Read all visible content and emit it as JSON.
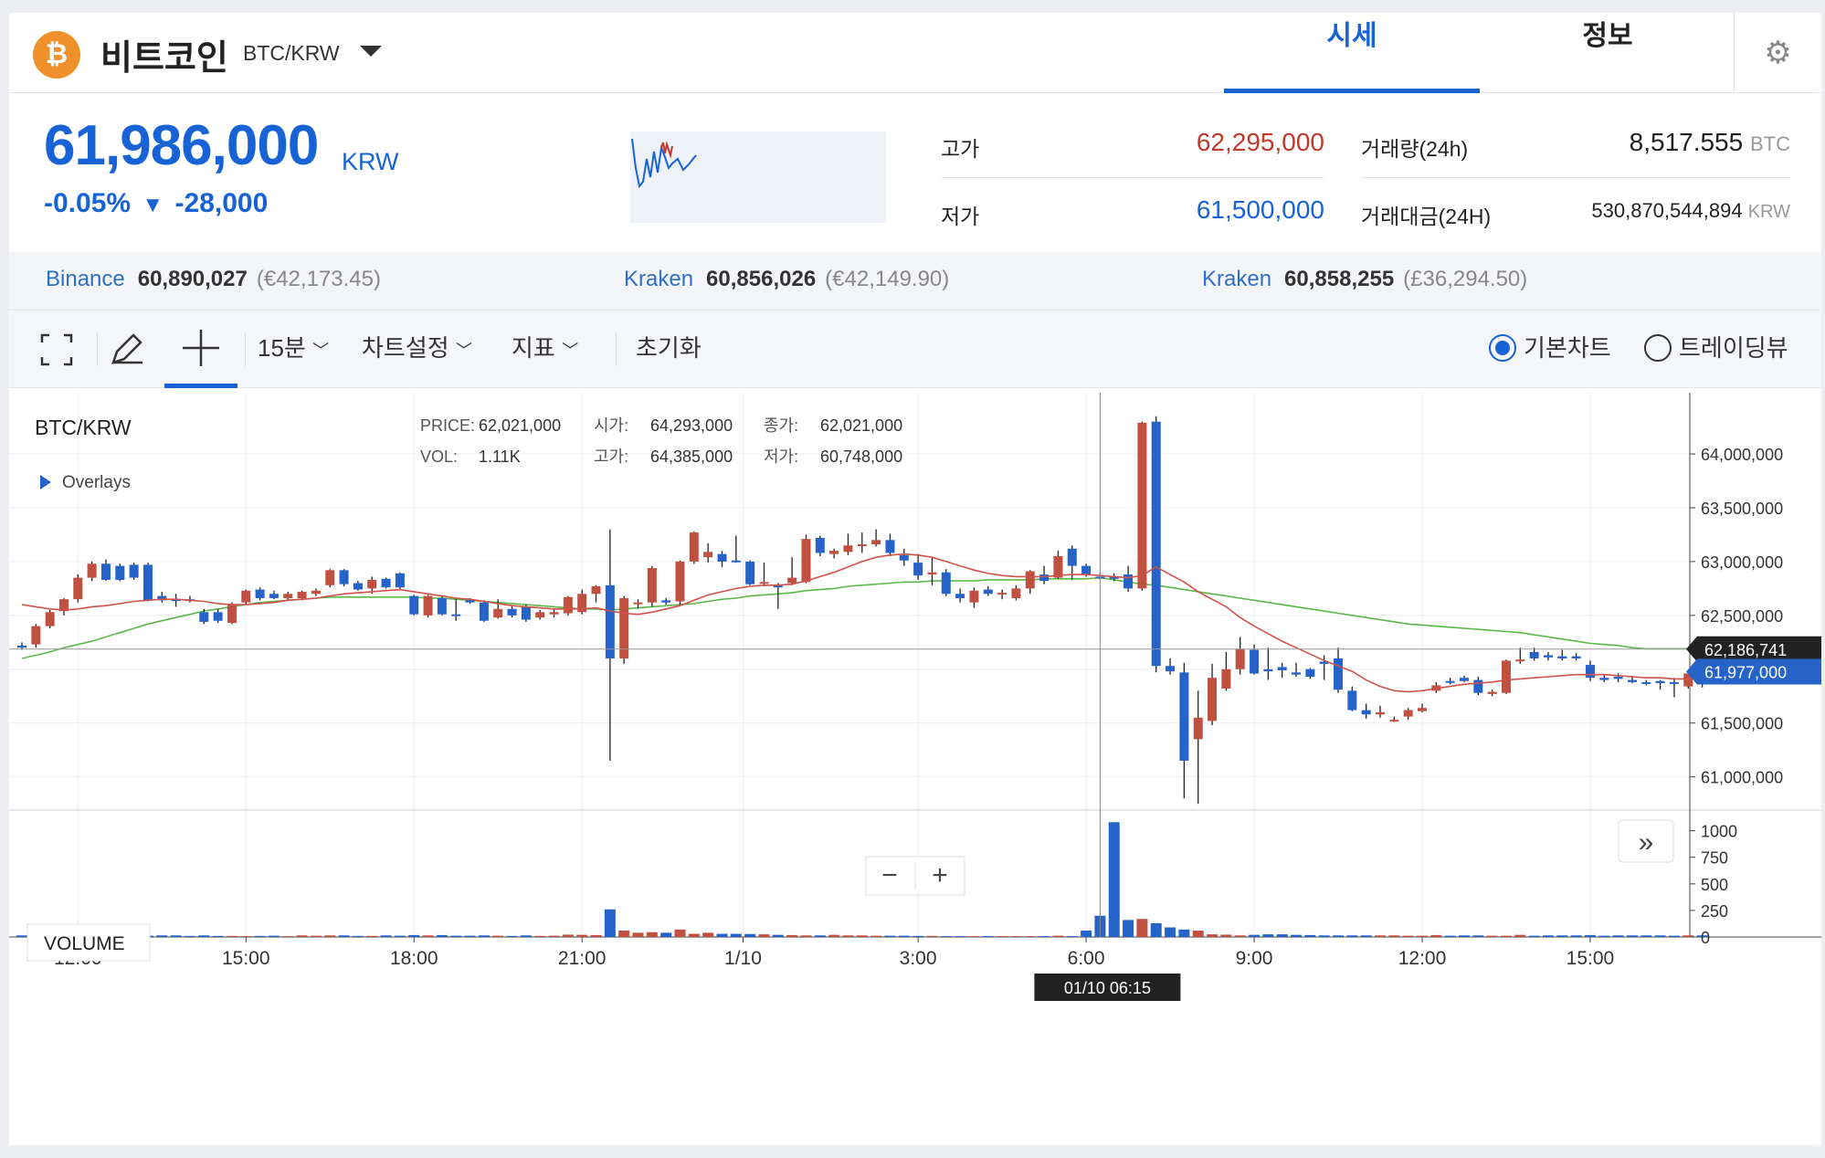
{
  "header": {
    "coin_icon": "bitcoin-icon",
    "coin_name": "비트코인",
    "pair": "BTC/KRW",
    "tabs": [
      {
        "label": "시세",
        "active": true
      },
      {
        "label": "정보",
        "active": false
      }
    ],
    "settings_icon": "gear-icon"
  },
  "ticker": {
    "price": "61,986,000",
    "unit": "KRW",
    "change_pct": "-0.05%",
    "change_arrow": "▼",
    "change_abs": "-28,000",
    "high_label": "고가",
    "high_value": "62,295,000",
    "low_label": "저가",
    "low_value": "61,500,000",
    "volume_label": "거래량(24h)",
    "volume_value": "8,517.555",
    "volume_unit": "BTC",
    "amount_label": "거래대금(24H)",
    "amount_value": "530,870,544,894",
    "amount_unit": "KRW"
  },
  "exchanges": [
    {
      "name": "Binance",
      "price": "60,890,027",
      "foreign": "(€42,173.45)"
    },
    {
      "name": "Kraken",
      "price": "60,856,026",
      "foreign": "(€42,149.90)"
    },
    {
      "name": "Kraken",
      "price": "60,858,255",
      "foreign": "(£36,294.50)"
    }
  ],
  "toolbar": {
    "fullscreen_icon": "fullscreen-icon",
    "pencil_icon": "pencil-icon",
    "crosshair_icon": "crosshair-icon",
    "interval": "15분",
    "chart_settings": "차트설정",
    "indicators": "지표",
    "reset": "초기화",
    "basic_chart": "기본차트",
    "tradingview": "트레이딩뷰",
    "selected_view": "기본차트"
  },
  "chart_data": {
    "type": "candlestick",
    "title": "BTC/KRW",
    "overlays_label": "Overlays",
    "info": {
      "price_label": "PRICE:",
      "price": "62,021,000",
      "open_label": "시가:",
      "open": "64,293,000",
      "close_label": "종가:",
      "close": "62,021,000",
      "vol_label": "VOL:",
      "vol": "1.11K",
      "high_label": "고가:",
      "high": "64,385,000",
      "low_label": "저가:",
      "low": "60,748,000"
    },
    "y_ticks": [
      "64,000,000",
      "63,500,000",
      "63,000,000",
      "62,500,000",
      "61,500,000",
      "61,000,000"
    ],
    "y_tick_values": [
      64000000,
      63500000,
      63000000,
      62500000,
      61500000,
      61000000
    ],
    "price_range": [
      60700000,
      64450000
    ],
    "ma_label": "62,186,741",
    "ma_value": 62186741,
    "last_label": "61,977,000",
    "last_value": 61977000,
    "x_ticks": [
      "12:00",
      "15:00",
      "18:00",
      "21:00",
      "1/10",
      "3:00",
      "6:00",
      "9:00",
      "12:00",
      "15:00"
    ],
    "x_tick_index": [
      4,
      16,
      28,
      40,
      51.5,
      64,
      76,
      88,
      100,
      112
    ],
    "crosshair_label": "01/10 06:15",
    "crosshair_index": 77,
    "volume_label": "VOLUME",
    "volume_ticks": [
      "1000",
      "750",
      "500",
      "250",
      "0"
    ],
    "volume_tick_values": [
      1000,
      750,
      500,
      250,
      0
    ],
    "volume_max": 1100,
    "candles": [
      [
        62220000,
        62250000,
        62180000,
        62200000
      ],
      [
        62230000,
        62420000,
        62200000,
        62400000
      ],
      [
        62400000,
        62550000,
        62380000,
        62530000
      ],
      [
        62540000,
        62660000,
        62500000,
        62650000
      ],
      [
        62650000,
        62880000,
        62620000,
        62850000
      ],
      [
        62850000,
        63000000,
        62820000,
        62980000
      ],
      [
        62980000,
        63020000,
        62820000,
        62830000
      ],
      [
        62960000,
        62980000,
        62820000,
        62830000
      ],
      [
        62970000,
        62990000,
        62830000,
        62850000
      ],
      [
        62970000,
        62990000,
        62630000,
        62640000
      ],
      [
        62680000,
        62720000,
        62620000,
        62640000
      ],
      [
        62650000,
        62700000,
        62580000,
        62640000
      ],
      [
        62650000,
        62680000,
        62620000,
        62640000
      ],
      [
        62530000,
        62560000,
        62420000,
        62440000
      ],
      [
        62530000,
        62560000,
        62430000,
        62450000
      ],
      [
        62430000,
        62620000,
        62420000,
        62600000
      ],
      [
        62620000,
        62740000,
        62600000,
        62730000
      ],
      [
        62740000,
        62760000,
        62640000,
        62660000
      ],
      [
        62700000,
        62730000,
        62650000,
        62660000
      ],
      [
        62660000,
        62720000,
        62640000,
        62700000
      ],
      [
        62660000,
        62730000,
        62640000,
        62720000
      ],
      [
        62700000,
        62750000,
        62680000,
        62730000
      ],
      [
        62780000,
        62930000,
        62760000,
        62920000
      ],
      [
        62920000,
        62930000,
        62770000,
        62790000
      ],
      [
        62800000,
        62820000,
        62730000,
        62740000
      ],
      [
        62750000,
        62860000,
        62700000,
        62830000
      ],
      [
        62840000,
        62850000,
        62750000,
        62760000
      ],
      [
        62890000,
        62900000,
        62740000,
        62760000
      ],
      [
        62680000,
        62690000,
        62500000,
        62510000
      ],
      [
        62500000,
        62690000,
        62480000,
        62680000
      ],
      [
        62660000,
        62680000,
        62500000,
        62510000
      ],
      [
        62510000,
        62650000,
        62450000,
        62500000
      ],
      [
        62640000,
        62660000,
        62610000,
        62620000
      ],
      [
        62620000,
        62640000,
        62440000,
        62450000
      ],
      [
        62480000,
        62650000,
        62470000,
        62560000
      ],
      [
        62560000,
        62590000,
        62480000,
        62500000
      ],
      [
        62580000,
        62600000,
        62440000,
        62460000
      ],
      [
        62480000,
        62550000,
        62460000,
        62530000
      ],
      [
        62510000,
        62560000,
        62480000,
        62530000
      ],
      [
        62520000,
        62680000,
        62500000,
        62670000
      ],
      [
        62530000,
        62740000,
        62510000,
        62700000
      ],
      [
        62700000,
        62780000,
        62620000,
        62770000
      ],
      [
        62780000,
        63300000,
        61150000,
        62100000
      ],
      [
        62100000,
        62680000,
        62050000,
        62660000
      ],
      [
        62610000,
        62650000,
        62560000,
        62620000
      ],
      [
        62620000,
        62960000,
        62580000,
        62940000
      ],
      [
        62640000,
        62660000,
        62600000,
        62620000
      ],
      [
        62630000,
        63010000,
        62600000,
        63000000
      ],
      [
        63000000,
        63280000,
        62980000,
        63270000
      ],
      [
        63040000,
        63170000,
        62990000,
        63090000
      ],
      [
        63070000,
        63100000,
        62950000,
        63000000
      ],
      [
        63010000,
        63240000,
        62990000,
        63000000
      ],
      [
        63000000,
        63010000,
        62780000,
        62790000
      ],
      [
        62800000,
        62990000,
        62770000,
        62810000
      ],
      [
        62780000,
        62800000,
        62560000,
        62760000
      ],
      [
        62800000,
        63040000,
        62780000,
        62850000
      ],
      [
        62810000,
        63250000,
        62800000,
        63210000
      ],
      [
        63220000,
        63240000,
        63050000,
        63080000
      ],
      [
        63070000,
        63120000,
        63030000,
        63100000
      ],
      [
        63090000,
        63260000,
        63060000,
        63150000
      ],
      [
        63150000,
        63270000,
        63080000,
        63160000
      ],
      [
        63160000,
        63300000,
        63140000,
        63200000
      ],
      [
        63200000,
        63260000,
        63050000,
        63080000
      ],
      [
        63060000,
        63120000,
        62960000,
        63010000
      ],
      [
        62990000,
        63070000,
        62830000,
        62870000
      ],
      [
        62880000,
        63040000,
        62780000,
        62900000
      ],
      [
        62900000,
        62930000,
        62680000,
        62700000
      ],
      [
        62700000,
        62750000,
        62620000,
        62660000
      ],
      [
        62620000,
        62760000,
        62570000,
        62730000
      ],
      [
        62740000,
        62770000,
        62680000,
        62700000
      ],
      [
        62700000,
        62740000,
        62650000,
        62710000
      ],
      [
        62660000,
        62780000,
        62640000,
        62750000
      ],
      [
        62750000,
        62920000,
        62700000,
        62910000
      ],
      [
        62880000,
        62960000,
        62790000,
        62820000
      ],
      [
        62850000,
        63100000,
        62840000,
        63050000
      ],
      [
        63120000,
        63150000,
        62830000,
        62960000
      ],
      [
        62960000,
        62980000,
        62860000,
        62880000
      ],
      [
        62860000,
        62900000,
        62830000,
        62850000
      ],
      [
        62860000,
        62890000,
        62820000,
        62840000
      ],
      [
        62880000,
        62960000,
        62720000,
        62750000
      ],
      [
        62750000,
        64300000,
        62730000,
        64290000
      ],
      [
        64300000,
        64350000,
        61970000,
        62030000
      ],
      [
        62030000,
        62100000,
        61950000,
        61980000
      ],
      [
        61970000,
        62060000,
        60800000,
        61150000
      ],
      [
        61350000,
        61800000,
        60750000,
        61550000
      ],
      [
        61520000,
        62050000,
        61480000,
        61920000
      ],
      [
        61820000,
        62160000,
        61800000,
        62000000
      ],
      [
        62000000,
        62300000,
        61950000,
        62190000
      ],
      [
        62180000,
        62230000,
        61950000,
        61960000
      ],
      [
        62000000,
        62200000,
        61900000,
        61980000
      ],
      [
        62020000,
        62060000,
        61920000,
        61990000
      ],
      [
        61970000,
        62060000,
        61930000,
        61950000
      ],
      [
        62000000,
        62010000,
        61910000,
        61930000
      ],
      [
        62070000,
        62130000,
        61900000,
        62050000
      ],
      [
        62100000,
        62200000,
        61780000,
        61810000
      ],
      [
        61800000,
        61840000,
        61610000,
        61620000
      ],
      [
        61620000,
        61680000,
        61540000,
        61580000
      ],
      [
        61580000,
        61660000,
        61550000,
        61600000
      ],
      [
        61520000,
        61560000,
        61510000,
        61530000
      ],
      [
        61560000,
        61640000,
        61530000,
        61620000
      ],
      [
        61610000,
        61680000,
        61600000,
        61640000
      ],
      [
        61800000,
        61880000,
        61780000,
        61850000
      ],
      [
        61890000,
        61920000,
        61860000,
        61880000
      ],
      [
        61920000,
        61940000,
        61880000,
        61890000
      ],
      [
        61900000,
        61930000,
        61760000,
        61780000
      ],
      [
        61770000,
        61810000,
        61750000,
        61790000
      ],
      [
        61780000,
        62090000,
        61770000,
        62080000
      ],
      [
        62080000,
        62200000,
        62050000,
        62090000
      ],
      [
        62160000,
        62200000,
        62080000,
        62100000
      ],
      [
        62130000,
        62160000,
        62080000,
        62110000
      ],
      [
        62120000,
        62180000,
        62080000,
        62100000
      ],
      [
        62120000,
        62150000,
        62080000,
        62100000
      ],
      [
        62040000,
        62080000,
        61890000,
        61920000
      ],
      [
        61920000,
        61950000,
        61880000,
        61900000
      ],
      [
        61930000,
        61960000,
        61880000,
        61910000
      ],
      [
        61900000,
        61940000,
        61870000,
        61880000
      ],
      [
        61880000,
        61900000,
        61850000,
        61870000
      ],
      [
        61890000,
        61900000,
        61810000,
        61870000
      ],
      [
        61880000,
        61920000,
        61740000,
        61870000
      ],
      [
        61840000,
        61980000,
        61820000,
        61960000
      ],
      [
        61960000,
        61990000,
        61830000,
        61890000
      ]
    ],
    "volumes": [
      15,
      15,
      15,
      15,
      20,
      20,
      15,
      15,
      18,
      12,
      15,
      15,
      10,
      15,
      10,
      10,
      8,
      10,
      12,
      8,
      15,
      12,
      15,
      15,
      10,
      10,
      15,
      12,
      18,
      15,
      18,
      12,
      12,
      15,
      12,
      10,
      15,
      10,
      12,
      22,
      20,
      18,
      260,
      60,
      40,
      45,
      40,
      70,
      30,
      40,
      30,
      30,
      28,
      25,
      20,
      18,
      15,
      15,
      20,
      15,
      15,
      12,
      12,
      12,
      10,
      10,
      8,
      8,
      8,
      8,
      8,
      8,
      8,
      8,
      12,
      8,
      60,
      200,
      1080,
      160,
      170,
      130,
      90,
      70,
      60,
      25,
      22,
      15,
      20,
      25,
      25,
      20,
      18,
      15,
      15,
      15,
      15,
      15,
      15,
      12,
      12,
      18,
      12,
      15,
      15,
      12,
      12,
      20,
      12,
      15,
      15,
      15,
      18,
      12,
      15,
      15,
      15,
      15,
      12,
      15,
      15
    ],
    "ma_short": [
      62600000,
      62580000,
      62560000,
      62550000,
      62560000,
      62580000,
      62590000,
      62610000,
      62630000,
      62640000,
      62650000,
      62650000,
      62640000,
      62630000,
      62610000,
      62600000,
      62600000,
      62610000,
      62620000,
      62640000,
      62650000,
      62660000,
      62680000,
      62700000,
      62710000,
      62720000,
      62730000,
      62740000,
      62720000,
      62700000,
      62680000,
      62660000,
      62650000,
      62630000,
      62610000,
      62590000,
      62580000,
      62570000,
      62560000,
      62560000,
      62560000,
      62570000,
      62540000,
      62520000,
      62510000,
      62530000,
      62560000,
      62590000,
      62640000,
      62690000,
      62720000,
      62750000,
      62770000,
      62780000,
      62780000,
      62790000,
      62820000,
      62860000,
      62900000,
      62950000,
      63000000,
      63040000,
      63060000,
      63070000,
      63060000,
      63040000,
      63000000,
      62960000,
      62920000,
      62890000,
      62870000,
      62860000,
      62860000,
      62860000,
      62870000,
      62880000,
      62880000,
      62870000,
      62860000,
      62850000,
      62870000,
      62950000,
      62880000,
      62810000,
      62720000,
      62650000,
      62580000,
      62480000,
      62400000,
      62330000,
      62260000,
      62200000,
      62140000,
      62080000,
      62030000,
      61980000,
      61900000,
      61840000,
      61800000,
      61790000,
      61800000,
      61820000,
      61840000,
      61860000,
      61870000,
      61880000,
      61900000,
      61910000,
      61920000,
      61930000,
      61940000,
      61950000,
      61950000,
      61950000,
      61940000,
      61930000,
      61920000,
      61920000,
      61910000,
      61910000,
      61940000
    ],
    "ma_long": [
      62100000,
      62130000,
      62160000,
      62200000,
      62230000,
      62260000,
      62300000,
      62340000,
      62380000,
      62420000,
      62450000,
      62480000,
      62510000,
      62540000,
      62560000,
      62580000,
      62600000,
      62620000,
      62630000,
      62640000,
      62650000,
      62660000,
      62670000,
      62670000,
      62670000,
      62670000,
      62670000,
      62670000,
      62670000,
      62660000,
      62660000,
      62650000,
      62640000,
      62630000,
      62620000,
      62610000,
      62600000,
      62590000,
      62580000,
      62570000,
      62560000,
      62560000,
      62550000,
      62560000,
      62570000,
      62580000,
      62590000,
      62600000,
      62610000,
      62630000,
      62650000,
      62660000,
      62680000,
      62690000,
      62700000,
      62710000,
      62730000,
      62740000,
      62750000,
      62770000,
      62780000,
      62790000,
      62800000,
      62810000,
      62810000,
      62820000,
      62820000,
      62820000,
      62820000,
      62830000,
      62830000,
      62830000,
      62830000,
      62840000,
      62840000,
      62840000,
      62840000,
      62850000,
      62830000,
      62810000,
      62790000,
      62780000,
      62760000,
      62740000,
      62720000,
      62700000,
      62680000,
      62660000,
      62640000,
      62620000,
      62600000,
      62580000,
      62560000,
      62540000,
      62520000,
      62500000,
      62480000,
      62460000,
      62440000,
      62420000,
      62410000,
      62400000,
      62390000,
      62380000,
      62370000,
      62360000,
      62350000,
      62340000,
      62320000,
      62300000,
      62280000,
      62260000,
      62240000,
      62230000,
      62220000,
      62200000,
      62190000,
      62190000,
      62190000,
      62190000,
      62190000
    ]
  },
  "colors": {
    "accent": "#1763d6",
    "up": "#c0503f",
    "down": "#2563c9",
    "ma_short": "#d0524a",
    "ma_long": "#5cb84a",
    "crosshair_bg": "#222222"
  }
}
